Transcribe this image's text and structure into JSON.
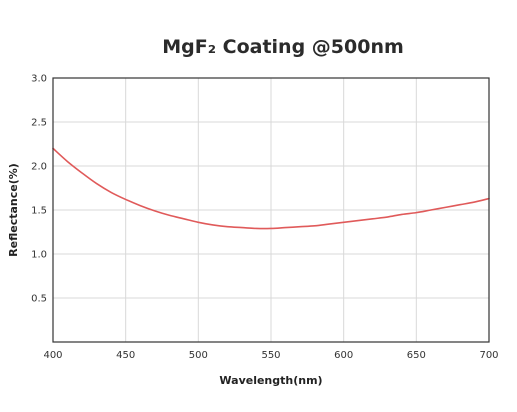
{
  "chart_data": {
    "type": "line",
    "title": "MgF₂ Coating  @500nm",
    "xlabel": "Wavelength(nm)",
    "ylabel": "Reflectance(%)",
    "xlim": [
      400,
      700
    ],
    "ylim": [
      0,
      3.0
    ],
    "x_ticks": [
      "400",
      "450",
      "500",
      "550",
      "600",
      "650",
      "700"
    ],
    "y_ticks": [
      "0.5",
      "1.0",
      "1.5",
      "2.0",
      "2.5",
      "3.0"
    ],
    "grid": true,
    "legend": "none",
    "series": [
      {
        "color": "#e05a5a",
        "x": [
          400,
          410,
          420,
          430,
          440,
          450,
          460,
          470,
          480,
          490,
          500,
          510,
          520,
          530,
          540,
          550,
          560,
          570,
          580,
          590,
          600,
          610,
          620,
          630,
          640,
          650,
          660,
          670,
          680,
          690,
          700
        ],
        "y": [
          2.2,
          2.05,
          1.92,
          1.8,
          1.7,
          1.62,
          1.55,
          1.49,
          1.44,
          1.4,
          1.36,
          1.33,
          1.31,
          1.3,
          1.29,
          1.29,
          1.3,
          1.31,
          1.32,
          1.34,
          1.36,
          1.38,
          1.4,
          1.42,
          1.45,
          1.47,
          1.5,
          1.53,
          1.56,
          1.59,
          1.63
        ]
      }
    ]
  }
}
